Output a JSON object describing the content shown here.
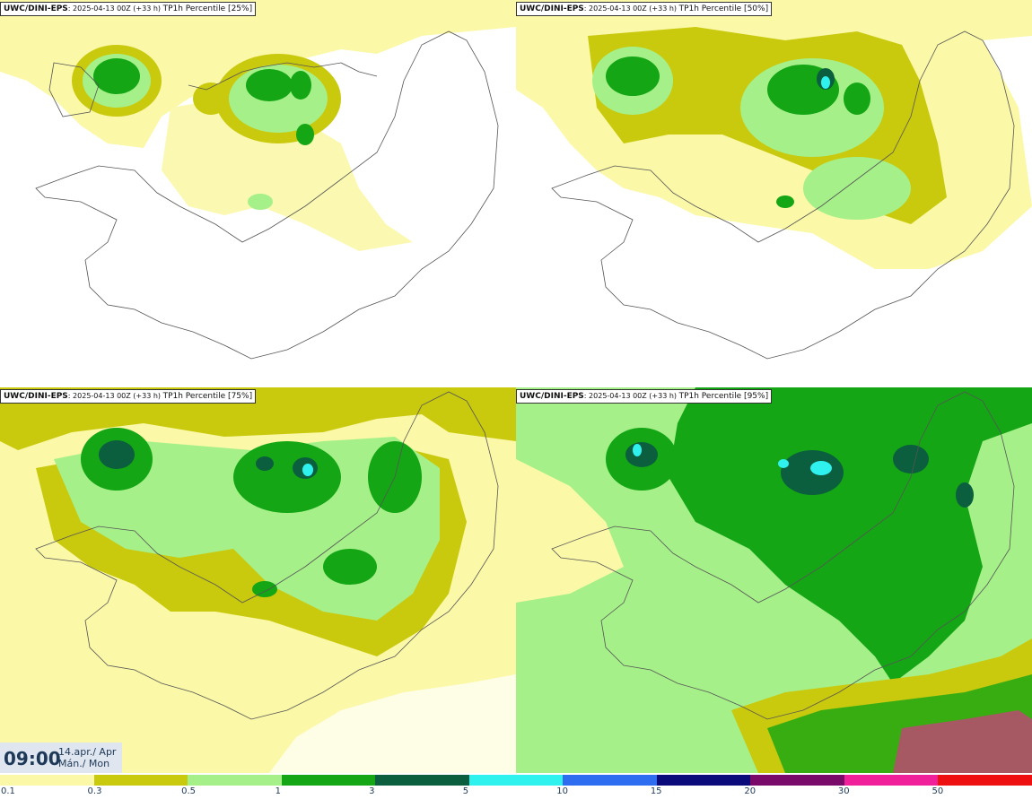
{
  "panels": [
    {
      "model": "UWC/DINI-EPS",
      "run": "2025-04-13 00Z (+33 h)",
      "product": "TP1h Percentile [25%]"
    },
    {
      "model": "UWC/DINI-EPS",
      "run": "2025-04-13 00Z (+33 h)",
      "product": "TP1h Percentile [50%]"
    },
    {
      "model": "UWC/DINI-EPS",
      "run": "2025-04-13 00Z (+33 h)",
      "product": "TP1h Percentile [75%]"
    },
    {
      "model": "UWC/DINI-EPS",
      "run": "2025-04-13 00Z (+33 h)",
      "product": "TP1h Percentile [95%]"
    }
  ],
  "valid_time": {
    "time": "09:00",
    "date_line1": "14.apr./ Apr",
    "date_line2": "Mán./ Mon"
  },
  "legend": {
    "labels": [
      "0.1",
      "0.3",
      "0.5",
      "1",
      "3",
      "5",
      "10",
      "15",
      "20",
      "30",
      "50"
    ],
    "colors": [
      "#fbf8a8",
      "#c9c90e",
      "#a6f08a",
      "#14a614",
      "#0b5e3e",
      "#2ff2ef",
      "#2e6cf0",
      "#0a0a7a",
      "#7a0a6a",
      "#f0209a",
      "#ee1010"
    ]
  }
}
